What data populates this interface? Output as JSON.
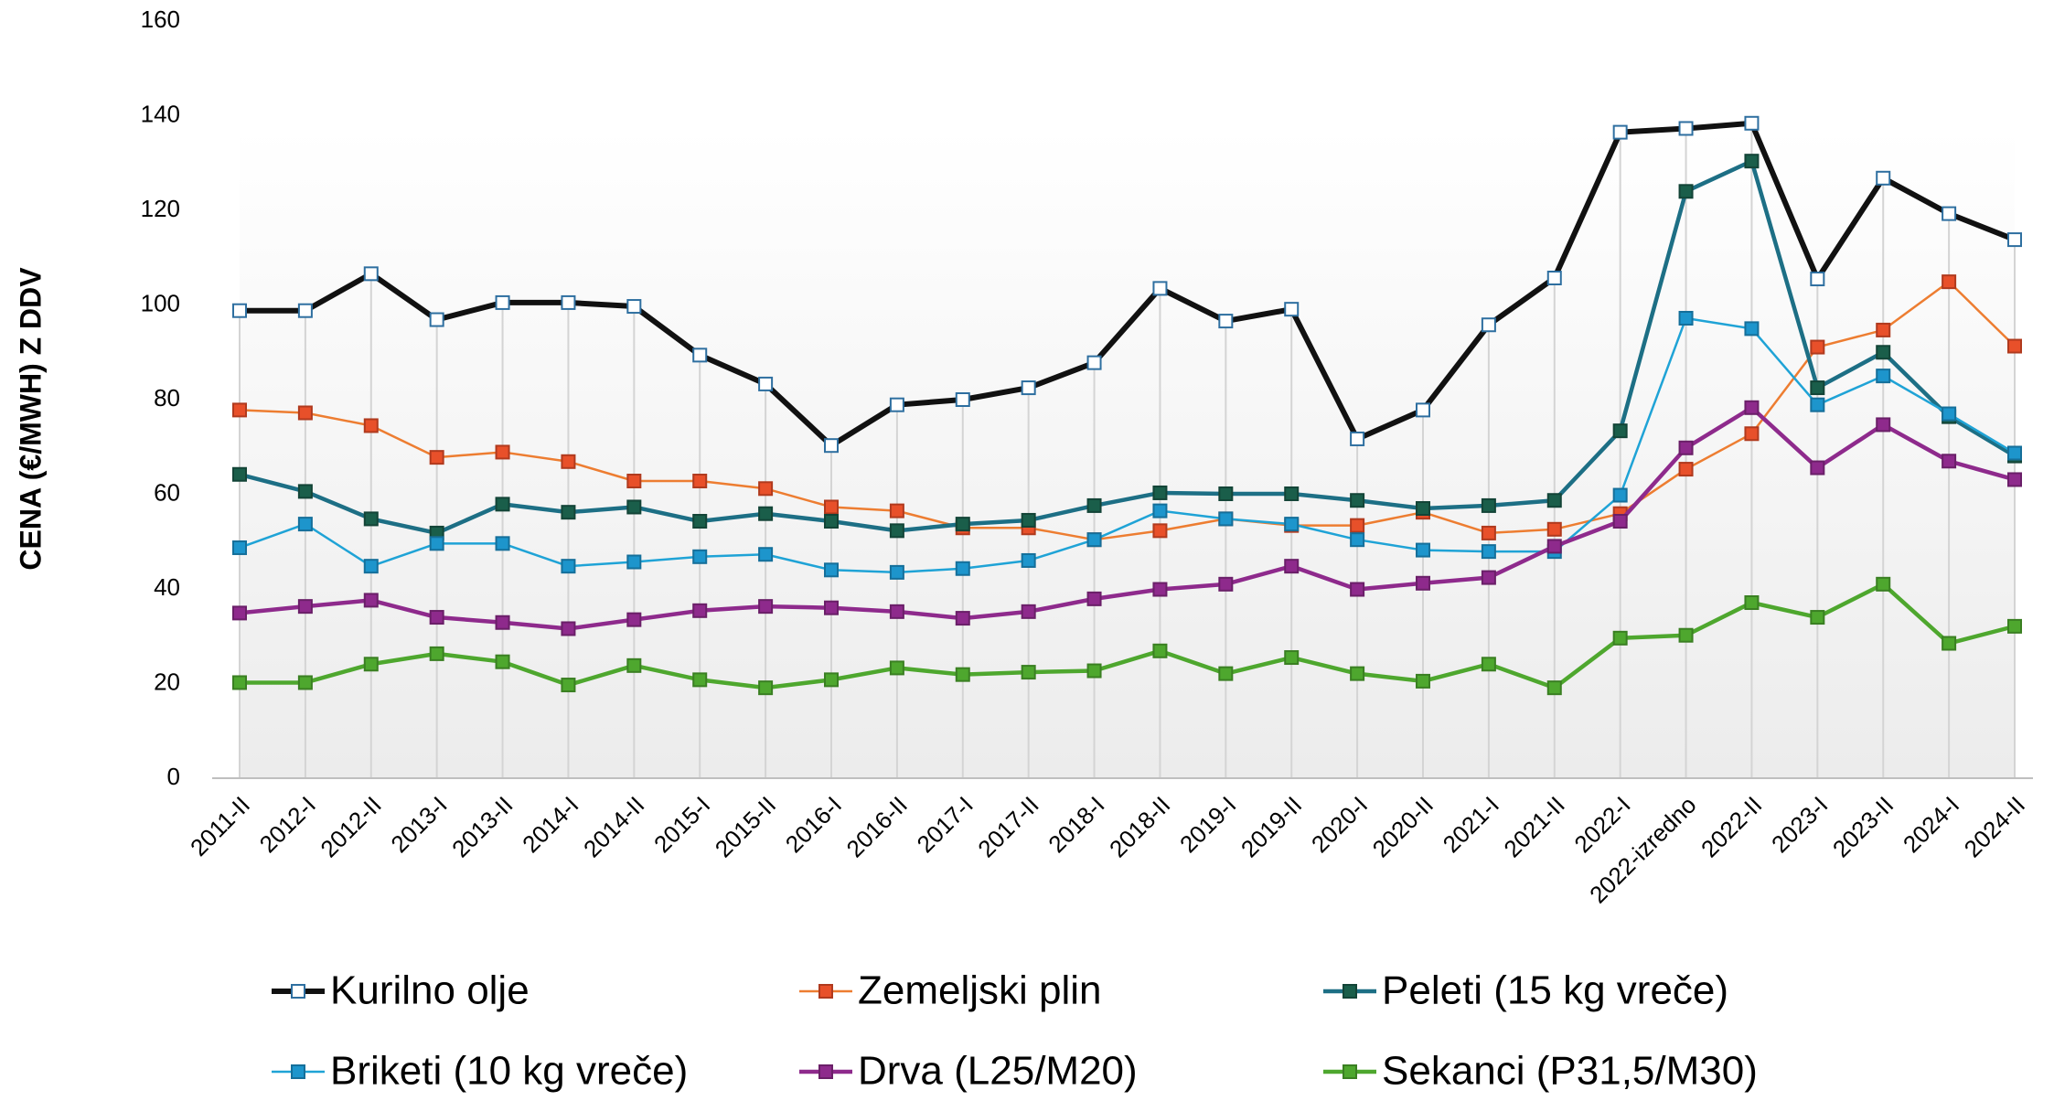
{
  "chart_data": {
    "type": "line",
    "y_label": "CENA (€/MWH) Z DDV",
    "categories": [
      "2011-II",
      "2012-I",
      "2012-II",
      "2013-I",
      "2013-II",
      "2014-I",
      "2014-II",
      "2015-I",
      "2015-II",
      "2016-I",
      "2016-II",
      "2017-I",
      "2017-II",
      "2018-I",
      "2018-II",
      "2019-I",
      "2019-II",
      "2020-I",
      "2020-II",
      "2021-I",
      "2021-II",
      "2022-I",
      "2022-izredno",
      "2022-II",
      "2023-I",
      "2023-II",
      "2024-I",
      "2024-II"
    ],
    "ylim": [
      0,
      160
    ],
    "yticks": [
      0,
      20,
      40,
      60,
      80,
      100,
      120,
      140,
      160
    ],
    "grid": "x",
    "legend": "bottom",
    "series": [
      {
        "name": "Kurilno olje",
        "color": "#111111",
        "marker_color": "#ffffff",
        "marker_edge": "#2e6fa0",
        "values": [
          98.8,
          98.8,
          106.6,
          96.9,
          100.5,
          100.5,
          99.7,
          89.4,
          83.3,
          70.3,
          78.9,
          80.0,
          82.5,
          87.8,
          103.5,
          96.6,
          99.1,
          71.7,
          77.8,
          95.8,
          105.7,
          136.5,
          137.3,
          138.4,
          105.5,
          126.8,
          119.3,
          113.8
        ]
      },
      {
        "name": "Zemeljski plin",
        "color": "#ed7d31",
        "marker_color": "#e8502a",
        "marker_edge": "#b03a1e",
        "values": [
          77.8,
          77.2,
          74.5,
          67.8,
          68.9,
          66.9,
          62.8,
          62.8,
          61.2,
          57.3,
          56.5,
          52.9,
          52.9,
          50.4,
          52.3,
          54.8,
          53.4,
          53.4,
          56.2,
          51.8,
          52.6,
          55.9,
          65.3,
          72.8,
          91.1,
          94.7,
          104.9,
          91.3
        ]
      },
      {
        "name": "Peleti (15 kg vreče)",
        "color": "#1d6f85",
        "marker_color": "#1a5e4a",
        "marker_edge": "#134437",
        "values": [
          64.2,
          60.6,
          54.8,
          51.8,
          57.9,
          56.2,
          57.3,
          54.3,
          55.9,
          54.3,
          52.3,
          53.7,
          54.5,
          57.6,
          60.3,
          60.1,
          60.1,
          58.7,
          57.0,
          57.6,
          58.7,
          73.4,
          124.0,
          130.4,
          82.5,
          90.0,
          76.4,
          68.1
        ]
      },
      {
        "name": "Briketi (10 kg vreče)",
        "color": "#1fa3d6",
        "marker_color": "#1d95cc",
        "marker_edge": "#156f9a",
        "values": [
          48.7,
          53.7,
          44.8,
          49.6,
          49.6,
          44.8,
          45.7,
          46.8,
          47.3,
          44.0,
          43.5,
          44.3,
          46.0,
          50.4,
          56.5,
          54.8,
          53.7,
          50.4,
          48.2,
          47.9,
          47.9,
          59.8,
          97.2,
          95.0,
          78.9,
          85.0,
          77.0,
          68.7
        ]
      },
      {
        "name": "Drva (L25/M20)",
        "color": "#8e2a8c",
        "marker_color": "#8e2a8c",
        "marker_edge": "#6a1f68",
        "values": [
          34.9,
          36.3,
          37.6,
          34.0,
          32.9,
          31.6,
          33.5,
          35.4,
          36.3,
          36.0,
          35.2,
          33.8,
          35.2,
          37.9,
          39.9,
          41.0,
          44.8,
          39.9,
          41.2,
          42.4,
          49.0,
          54.3,
          69.8,
          78.3,
          65.6,
          74.7,
          67.0,
          63.1
        ]
      },
      {
        "name": "Sekanci (P31,5/M30)",
        "color": "#4ea72e",
        "marker_color": "#4ea72e",
        "marker_edge": "#3a7f22",
        "values": [
          20.2,
          20.2,
          24.1,
          26.3,
          24.6,
          19.7,
          23.8,
          20.8,
          19.1,
          20.8,
          23.3,
          21.9,
          22.4,
          22.7,
          26.9,
          22.1,
          25.5,
          22.1,
          20.5,
          24.1,
          19.1,
          29.6,
          30.2,
          37.1,
          34.0,
          41.0,
          28.5,
          32.1
        ]
      }
    ]
  }
}
